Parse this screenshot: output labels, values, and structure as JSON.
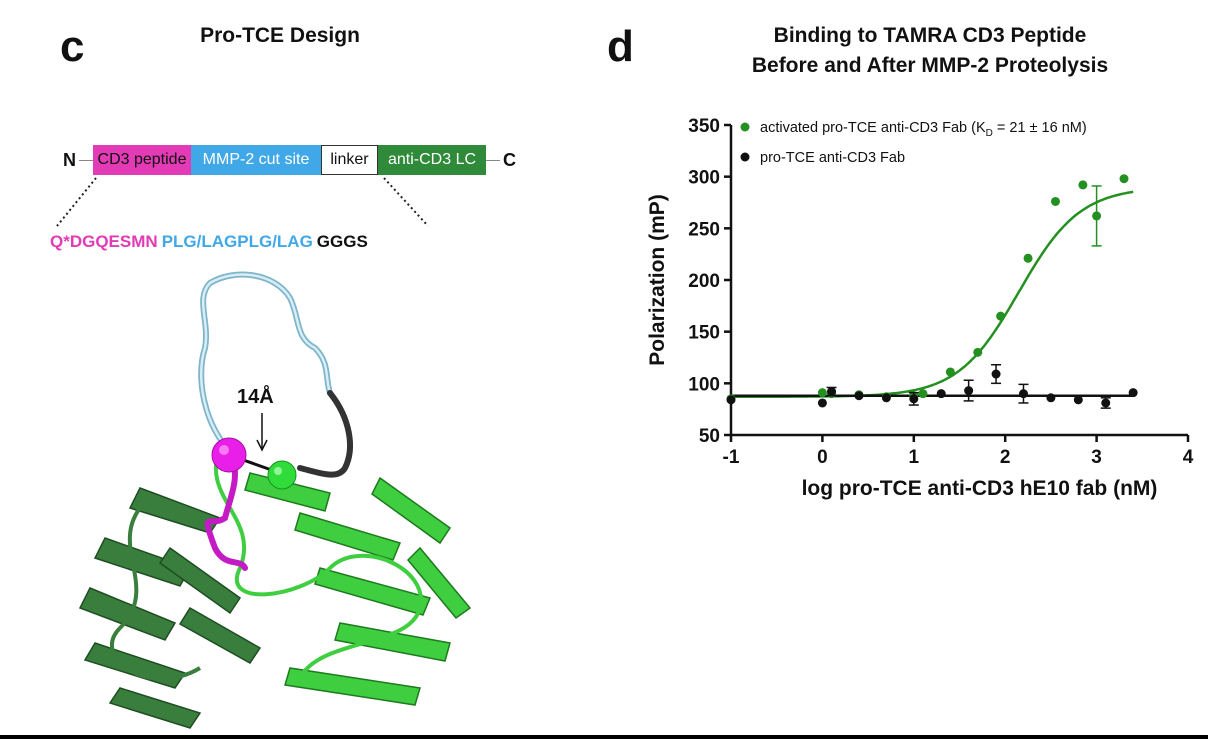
{
  "panel_c": {
    "letter": "c",
    "title": "Pro-TCE Design",
    "n_terminus": "N",
    "c_terminus": "C",
    "segments": [
      {
        "label": "CD3 peptide",
        "color": "#e33ab6"
      },
      {
        "label": "MMP-2 cut site",
        "color": "#41a8e8"
      },
      {
        "label": "linker",
        "color": "#ffffff"
      },
      {
        "label": "anti-CD3 LC",
        "color": "#2f8a3a"
      }
    ],
    "sequence": [
      {
        "text": "Q*DGQESMN",
        "color": "#e33ab6"
      },
      {
        "text": "PLG/LAGPLG/LAG",
        "color": "#41a8e8"
      },
      {
        "text": "GGGS",
        "color": "#111111"
      }
    ],
    "distance_label": "14Å"
  },
  "panel_d": {
    "letter": "d",
    "title_line1": "Binding to TAMRA CD3 Peptide",
    "title_line2": "Before and After MMP-2 Proteolysis"
  },
  "chart_data": {
    "type": "scatter",
    "title": "Binding to TAMRA CD3 Peptide Before and After MMP-2 Proteolysis",
    "xlabel": "log pro-TCE anti-CD3 hE10 fab (nM)",
    "ylabel": "Polarization (mP)",
    "xlim": [
      -1,
      4
    ],
    "ylim": [
      50,
      350
    ],
    "xticks": [
      "-1",
      "0",
      "1",
      "2",
      "3",
      "4"
    ],
    "yticks": [
      "50",
      "100",
      "150",
      "200",
      "250",
      "300",
      "350"
    ],
    "legend_position": "top-left",
    "series": [
      {
        "name": "activated pro-TCE anti-CD3 Fab (KD = 21 ± 16 nM)",
        "legend_main": "activated pro-TCE anti-CD3 Fab (K",
        "legend_sub": "D",
        "legend_tail": " = 21 ± 16 nM)",
        "color": "#23901f",
        "x": [
          -1.0,
          0.0,
          0.1,
          0.4,
          0.7,
          1.0,
          1.1,
          1.4,
          1.7,
          1.95,
          2.25,
          2.55,
          2.85,
          3.0,
          3.3
        ],
        "y": [
          85,
          91,
          90,
          89,
          87,
          88,
          90,
          111,
          130,
          165,
          221,
          276,
          292,
          262,
          298
        ],
        "err": [
          0,
          0,
          0,
          0,
          0,
          0,
          0,
          0,
          0,
          0,
          0,
          0,
          0,
          29,
          0
        ],
        "fit": {
          "bottom": 87,
          "top": 290,
          "logEC50": 2.15,
          "hill": 1.3
        }
      },
      {
        "name": "pro-TCE anti-CD3 Fab",
        "legend_main": "pro-TCE anti-CD3 Fab",
        "legend_sub": "",
        "legend_tail": "",
        "color": "#111111",
        "x": [
          -1.0,
          0.0,
          0.1,
          0.4,
          0.7,
          1.0,
          1.3,
          1.6,
          1.9,
          2.2,
          2.5,
          2.8,
          3.1,
          3.4
        ],
        "y": [
          84,
          81,
          92,
          88,
          86,
          85,
          90,
          93,
          109,
          90,
          86,
          84,
          81,
          91
        ],
        "err": [
          0,
          0,
          4,
          0,
          0,
          6,
          0,
          10,
          9,
          9,
          0,
          0,
          5,
          0
        ],
        "fit": {
          "constant": 88
        }
      }
    ]
  }
}
